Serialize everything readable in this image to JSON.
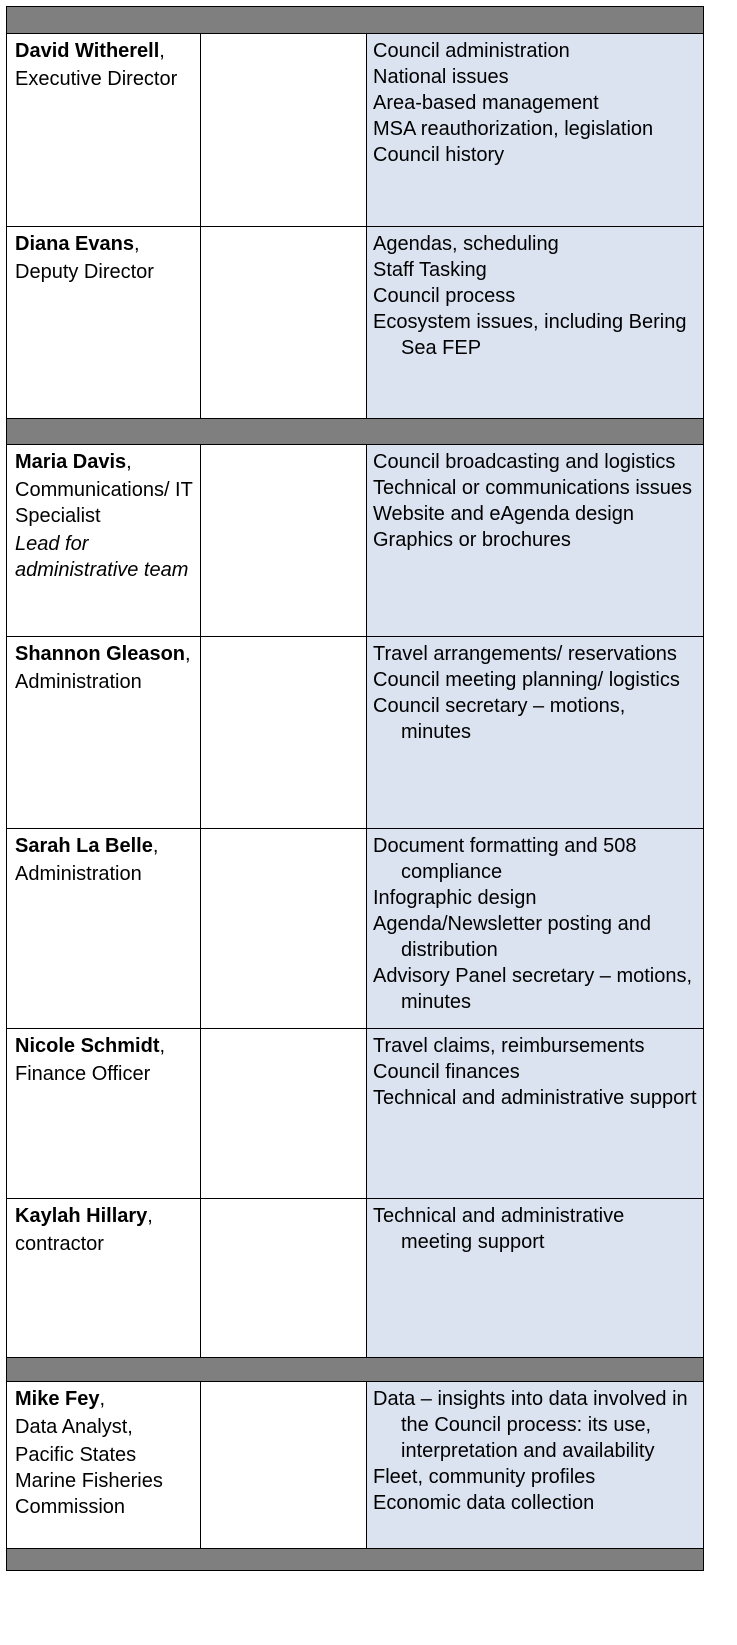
{
  "sections": [
    {
      "people": [
        {
          "name": "David Witherell",
          "suffix": ",",
          "roles": [
            "Executive Director"
          ],
          "duties": [
            "Council administration",
            "National issues",
            "Area-based management",
            "MSA reauthorization, legislation",
            "Council history"
          ]
        },
        {
          "name": "Diana Evans",
          "suffix": ",",
          "roles": [
            "Deputy Director"
          ],
          "duties": [
            "Agendas, scheduling",
            "Staff Tasking",
            "Council process",
            "Ecosystem issues, including Bering Sea FEP"
          ]
        }
      ]
    },
    {
      "people": [
        {
          "name": "Maria Davis",
          "suffix": ",",
          "roles": [
            "Communications/ IT Specialist"
          ],
          "lead": "Lead for administrative team",
          "duties": [
            "Council broadcasting and logistics",
            "Technical or communications issues",
            "Website and eAgenda design",
            "Graphics or brochures"
          ]
        },
        {
          "name": "Shannon Gleason",
          "suffix": ",",
          "roles": [
            "Administration"
          ],
          "duties": [
            "Travel arrangements/ reservations",
            "Council meeting planning/ logistics",
            "Council secretary – motions, minutes"
          ]
        },
        {
          "name": "Sarah La Belle",
          "suffix": ",",
          "roles": [
            "Administration"
          ],
          "duties": [
            "Document formatting and 508 compliance",
            "Infographic design",
            "Agenda/Newsletter posting and distribution",
            "Advisory Panel secretary – motions, minutes"
          ]
        },
        {
          "name": "Nicole Schmidt",
          "suffix": ",",
          "roles": [
            "Finance Officer"
          ],
          "duties": [
            "Travel claims, reimbursements",
            "Council finances",
            "Technical and administrative support"
          ]
        },
        {
          "name": "Kaylah Hillary",
          "suffix": ",",
          "roles": [
            "contractor"
          ],
          "duties": [
            "Technical and administrative meeting support"
          ]
        }
      ]
    },
    {
      "people": [
        {
          "name": "Mike Fey",
          "suffix": ",",
          "roles": [
            "Data Analyst,",
            "Pacific States Marine Fisheries Commission"
          ],
          "duties": [
            "Data – insights into data involved in the Council process: its use, interpretation and availability",
            "Fleet, community profiles",
            "Economic data collection"
          ]
        }
      ]
    }
  ]
}
